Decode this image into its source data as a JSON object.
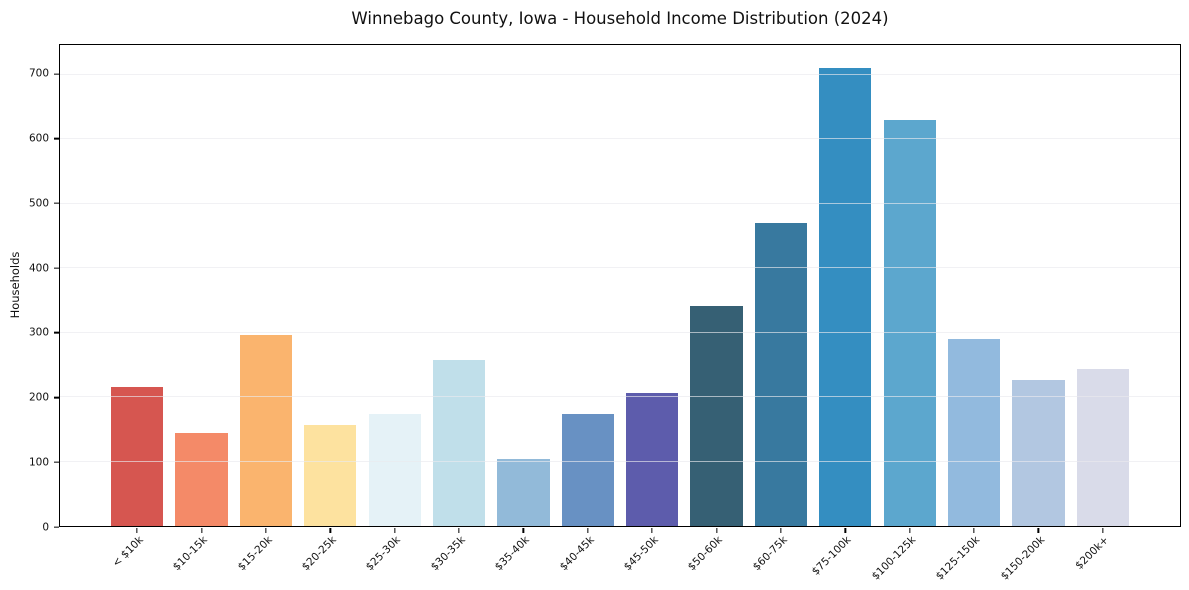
{
  "chart_data": {
    "type": "bar",
    "title": "Winnebago County, Iowa - Household Income Distribution (2024)",
    "xlabel": "",
    "ylabel": "Households",
    "categories": [
      "< $10k",
      "$10-15k",
      "$15-20k",
      "$20-25k",
      "$25-30k",
      "$30-35k",
      "$35-40k",
      "$40-45k",
      "$45-50k",
      "$50-60k",
      "$60-75k",
      "$75-100k",
      "$100-125k",
      "$125-150k",
      "$150-200k",
      "$200k+"
    ],
    "values": [
      215,
      145,
      297,
      157,
      173,
      257,
      104,
      173,
      207,
      342,
      470,
      710,
      630,
      290,
      226,
      243
    ],
    "bar_colors": [
      "#d65650",
      "#f48a68",
      "#fab46e",
      "#fde29f",
      "#e5f2f7",
      "#c0dfea",
      "#92bad9",
      "#6891c3",
      "#5d5cac",
      "#366074",
      "#38799f",
      "#348ec1",
      "#5ca7ce",
      "#92bade",
      "#b2c7e1",
      "#d9dbe9"
    ],
    "ylim": [
      0,
      746
    ],
    "yticks": [
      0,
      100,
      200,
      300,
      400,
      500,
      600,
      700
    ],
    "grid": "horizontal",
    "legend": "none"
  },
  "colors": {
    "background": "#ffffff",
    "spine": "#000000",
    "gridline": "#e9eaee",
    "text": "#111111"
  }
}
